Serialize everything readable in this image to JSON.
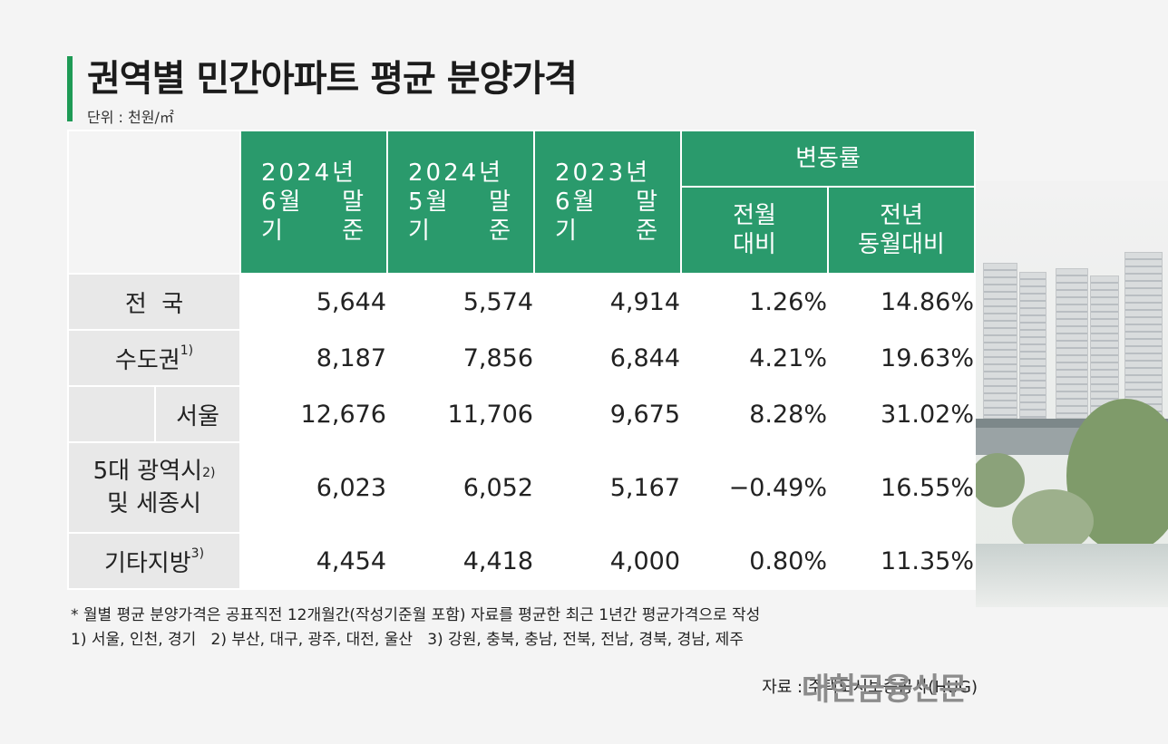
{
  "title": "권역별 민간아파트 평균 분양가격",
  "unit": "단위 : 천원/㎡",
  "header": {
    "col1": [
      "2024년",
      "6월 말",
      "기 준"
    ],
    "col2": [
      "2024년",
      "5월 말",
      "기 준"
    ],
    "col3": [
      "2023년",
      "6월 말",
      "기 준"
    ],
    "change_group": "변동률",
    "col4": [
      "전월",
      "대비"
    ],
    "col5": [
      "전년",
      "동월대비"
    ]
  },
  "rows": [
    {
      "label": "전  국",
      "sup": "",
      "values": [
        "5,644",
        "5,574",
        "4,914",
        "1.26%",
        "14.86%"
      ]
    },
    {
      "label": "수도권",
      "sup": "1)",
      "values": [
        "8,187",
        "7,856",
        "6,844",
        "4.21%",
        "19.63%"
      ]
    },
    {
      "label": "서울",
      "sup": "",
      "values": [
        "12,676",
        "11,706",
        "9,675",
        "8.28%",
        "31.02%"
      ]
    },
    {
      "label": "5대 광역시",
      "label2": "및 세종시",
      "sup": "2)",
      "values": [
        "6,023",
        "6,052",
        "5,167",
        "−0.49%",
        "16.55%"
      ]
    },
    {
      "label": "기타지방",
      "sup": "3)",
      "values": [
        "4,454",
        "4,418",
        "4,000",
        "0.80%",
        "11.35%"
      ]
    }
  ],
  "notes": {
    "line1": "* 월별 평균 분양가격은 공표직전 12개월간(작성기준월 포함) 자료를 평균한 최근 1년간 평균가격으로 작성",
    "line2": "1) 서울, 인천, 경기   2) 부산, 대구, 광주, 대전, 울산   3) 강원, 충북, 충남, 전북, 전남, 경북, 경남, 제주"
  },
  "source": "자료 : 주택도시보증공사(HUG)",
  "brand": "대한금융신문",
  "colors": {
    "accent": "#1e9a55",
    "header_bg": "#2a9a6c",
    "label_bg": "#e8e8e8"
  }
}
